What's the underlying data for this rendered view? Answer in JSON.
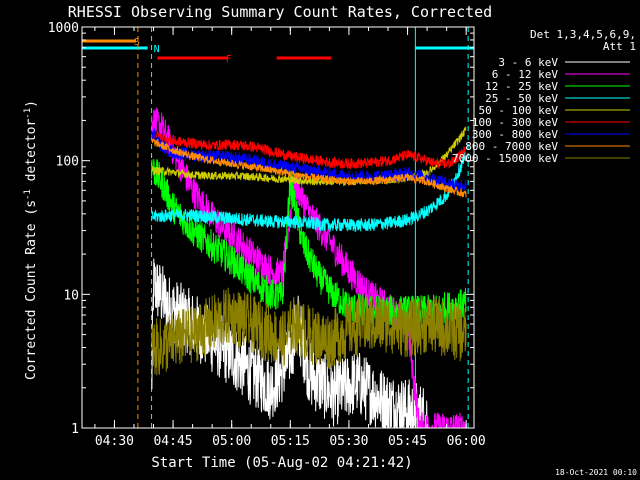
{
  "chart_data": {
    "type": "line",
    "title": "RHESSI Observing Summary Count Rates, Corrected",
    "xlabel": "Start Time (05-Aug-02 04:21:42)",
    "ylabel_main": "Corrected Count Rate (s",
    "ylabel_sup1": "-1",
    "ylabel_mid": " detector",
    "ylabel_sup2": "-1",
    "ylabel_end": ")",
    "yscale": "log",
    "ylim": [
      1,
      1000
    ],
    "xlim_minutes": [
      261.7,
      362.0
    ],
    "x_ticks": [
      {
        "m": 270,
        "label": "04:30"
      },
      {
        "m": 285,
        "label": "04:45"
      },
      {
        "m": 300,
        "label": "05:00"
      },
      {
        "m": 315,
        "label": "05:15"
      },
      {
        "m": 330,
        "label": "05:30"
      },
      {
        "m": 345,
        "label": "05:45"
      },
      {
        "m": 360,
        "label": "06:00"
      }
    ],
    "y_ticks": [
      {
        "v": 1,
        "label": "1"
      },
      {
        "v": 10,
        "label": "10"
      },
      {
        "v": 100,
        "label": "100"
      },
      {
        "v": 1000,
        "label": "1000"
      }
    ],
    "legend": {
      "header1": "Det 1,3,4,5,6,9,",
      "header2": "Att 1",
      "position": "top-right"
    },
    "flags": [
      {
        "label": "S",
        "color": "#ff8c00",
        "segments": [
          [
            261.7,
            275.5
          ]
        ]
      },
      {
        "label": "N",
        "color": "#00ffff",
        "segments": [
          [
            261.7,
            278.5
          ],
          [
            347.0,
            362.0
          ]
        ]
      },
      {
        "label": "F",
        "color": "#ff0000",
        "segments": [
          [
            281.0,
            299.0
          ],
          [
            311.5,
            325.5
          ]
        ]
      }
    ],
    "vlines": [
      {
        "m": 276.0,
        "color": "#ff8c00",
        "style": "dashed"
      },
      {
        "m": 279.5,
        "color": "#00ffff",
        "style": "dashed"
      },
      {
        "m": 347.0,
        "color": "#00ffff",
        "style": "solid"
      },
      {
        "m": 360.5,
        "color": "#00ffff",
        "style": "dashed"
      }
    ],
    "series": [
      {
        "name": "3 - 6 keV",
        "color": "#ffffff",
        "noise": 0.25,
        "points": [
          [
            279.5,
            1.8
          ],
          [
            280,
            12
          ],
          [
            284,
            8
          ],
          [
            290,
            6
          ],
          [
            295,
            4.5
          ],
          [
            300,
            3.5
          ],
          [
            305,
            2.6
          ],
          [
            310,
            2
          ],
          [
            314,
            3
          ],
          [
            317,
            6
          ],
          [
            320,
            2.5
          ],
          [
            326,
            1.8
          ],
          [
            332,
            2.2
          ],
          [
            340,
            1.5
          ],
          [
            350,
            1.2
          ]
        ]
      },
      {
        "name": "6 - 12 keV",
        "color": "#ff00ff",
        "noise": 0.12,
        "points": [
          [
            279.5,
            200
          ],
          [
            282,
            180
          ],
          [
            285,
            120
          ],
          [
            290,
            60
          ],
          [
            295,
            38
          ],
          [
            300,
            28
          ],
          [
            305,
            20
          ],
          [
            310,
            15
          ],
          [
            313,
            14
          ],
          [
            316,
            70
          ],
          [
            320,
            40
          ],
          [
            325,
            25
          ],
          [
            330,
            15
          ],
          [
            335,
            10
          ],
          [
            340,
            8
          ],
          [
            345,
            6
          ],
          [
            348,
            1
          ],
          [
            360,
            1
          ]
        ]
      },
      {
        "name": "12 - 25 keV",
        "color": "#00ff00",
        "noise": 0.12,
        "points": [
          [
            279.5,
            90
          ],
          [
            282,
            70
          ],
          [
            285,
            45
          ],
          [
            290,
            30
          ],
          [
            295,
            23
          ],
          [
            300,
            18
          ],
          [
            305,
            13
          ],
          [
            310,
            10
          ],
          [
            313,
            9.5
          ],
          [
            315,
            70
          ],
          [
            318,
            25
          ],
          [
            322,
            14
          ],
          [
            326,
            10
          ],
          [
            330,
            8
          ],
          [
            335,
            7.5
          ],
          [
            340,
            7.5
          ],
          [
            345,
            7.5
          ],
          [
            350,
            7.5
          ],
          [
            355,
            8
          ],
          [
            360,
            8.5
          ]
        ]
      },
      {
        "name": "25 - 50 keV",
        "color": "#00ffff",
        "noise": 0.05,
        "points": [
          [
            279.5,
            38
          ],
          [
            285,
            39
          ],
          [
            290,
            39
          ],
          [
            295,
            38
          ],
          [
            300,
            37
          ],
          [
            305,
            36
          ],
          [
            310,
            35
          ],
          [
            315,
            35
          ],
          [
            320,
            34
          ],
          [
            325,
            33
          ],
          [
            330,
            33
          ],
          [
            335,
            33
          ],
          [
            340,
            34
          ],
          [
            345,
            36
          ],
          [
            350,
            42
          ],
          [
            355,
            55
          ],
          [
            360,
            110
          ]
        ]
      },
      {
        "name": "50 - 100 keV",
        "color": "#cccc00",
        "noise": 0.03,
        "points": [
          [
            279.5,
            85
          ],
          [
            285,
            82
          ],
          [
            290,
            78
          ],
          [
            295,
            77
          ],
          [
            300,
            77
          ],
          [
            305,
            76
          ],
          [
            310,
            74
          ],
          [
            315,
            72
          ],
          [
            320,
            70
          ],
          [
            325,
            70
          ],
          [
            330,
            70
          ],
          [
            335,
            71
          ],
          [
            340,
            72
          ],
          [
            345,
            74
          ],
          [
            350,
            80
          ],
          [
            355,
            110
          ],
          [
            360,
            170
          ]
        ]
      },
      {
        "name": "100 - 300 keV",
        "color": "#ff0000",
        "noise": 0.04,
        "points": [
          [
            279.5,
            160
          ],
          [
            285,
            140
          ],
          [
            290,
            135
          ],
          [
            295,
            130
          ],
          [
            300,
            132
          ],
          [
            305,
            128
          ],
          [
            310,
            118
          ],
          [
            315,
            108
          ],
          [
            320,
            102
          ],
          [
            325,
            97
          ],
          [
            330,
            95
          ],
          [
            335,
            96
          ],
          [
            340,
            100
          ],
          [
            345,
            110
          ],
          [
            348,
            105
          ],
          [
            352,
            95
          ],
          [
            356,
            95
          ],
          [
            360,
            120
          ]
        ]
      },
      {
        "name": "300 - 800 keV",
        "color": "#0000ff",
        "noise": 0.05,
        "points": [
          [
            279.5,
            170
          ],
          [
            282,
            130
          ],
          [
            285,
            115
          ],
          [
            290,
            110
          ],
          [
            295,
            108
          ],
          [
            300,
            105
          ],
          [
            305,
            100
          ],
          [
            310,
            93
          ],
          [
            315,
            88
          ],
          [
            320,
            85
          ],
          [
            325,
            80
          ],
          [
            330,
            77
          ],
          [
            335,
            76
          ],
          [
            340,
            77
          ],
          [
            345,
            80
          ],
          [
            350,
            75
          ],
          [
            355,
            68
          ],
          [
            360,
            65
          ]
        ]
      },
      {
        "name": "800 - 7000 keV",
        "color": "#ff8c00",
        "noise": 0.03,
        "points": [
          [
            279.5,
            140
          ],
          [
            285,
            120
          ],
          [
            290,
            108
          ],
          [
            295,
            100
          ],
          [
            300,
            95
          ],
          [
            305,
            90
          ],
          [
            310,
            85
          ],
          [
            315,
            80
          ],
          [
            320,
            75
          ],
          [
            325,
            72
          ],
          [
            330,
            70
          ],
          [
            335,
            70
          ],
          [
            340,
            72
          ],
          [
            345,
            75
          ],
          [
            350,
            70
          ],
          [
            355,
            62
          ],
          [
            360,
            56
          ]
        ]
      },
      {
        "name": "7000 - 15000 keV",
        "color": "#8b8000",
        "noise": 0.22,
        "points": [
          [
            279.5,
            4
          ],
          [
            282,
            4
          ],
          [
            285,
            4.5
          ],
          [
            290,
            5
          ],
          [
            295,
            6
          ],
          [
            300,
            7
          ],
          [
            305,
            6
          ],
          [
            310,
            5
          ],
          [
            313,
            4.5
          ],
          [
            316,
            6
          ],
          [
            320,
            5
          ],
          [
            325,
            4.5
          ],
          [
            330,
            5.5
          ],
          [
            335,
            6
          ],
          [
            340,
            6
          ],
          [
            345,
            5.5
          ],
          [
            350,
            6
          ],
          [
            355,
            5.5
          ],
          [
            360,
            5
          ]
        ]
      }
    ]
  },
  "footer": {
    "date": "18-Oct-2021 00:10"
  }
}
